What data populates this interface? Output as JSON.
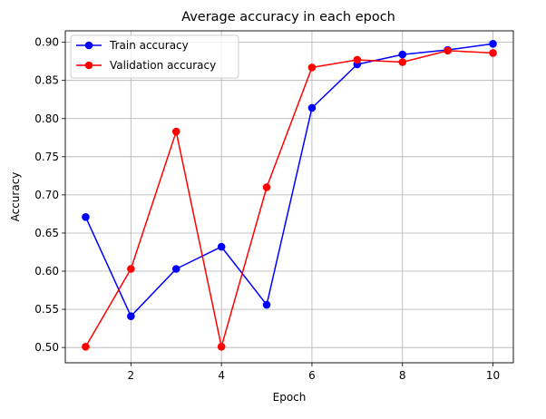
{
  "chart_data": {
    "type": "line",
    "title": "Average accuracy in each epoch",
    "xlabel": "Epoch",
    "ylabel": "Accuracy",
    "x": [
      1,
      2,
      3,
      4,
      5,
      6,
      7,
      8,
      9,
      10
    ],
    "xlim": [
      0.55,
      10.45
    ],
    "ylim": [
      0.48,
      0.915
    ],
    "xticks": [
      2,
      4,
      6,
      8,
      10
    ],
    "xtick_labels": [
      "2",
      "4",
      "6",
      "8",
      "10"
    ],
    "yticks": [
      0.5,
      0.55,
      0.6,
      0.65,
      0.7,
      0.75,
      0.8,
      0.85,
      0.9
    ],
    "ytick_labels": [
      "0.50",
      "0.55",
      "0.60",
      "0.65",
      "0.70",
      "0.75",
      "0.80",
      "0.85",
      "0.90"
    ],
    "grid": true,
    "legend_position": "top-left",
    "series": [
      {
        "name": "Train accuracy",
        "color": "#0000ff",
        "marker": "circle",
        "values": [
          0.671,
          0.541,
          0.603,
          0.632,
          0.556,
          0.814,
          0.871,
          0.884,
          0.89,
          0.898
        ]
      },
      {
        "name": "Validation accuracy",
        "color": "#ff0000",
        "marker": "circle",
        "values": [
          0.501,
          0.603,
          0.783,
          0.501,
          0.71,
          0.867,
          0.877,
          0.874,
          0.889,
          0.886
        ]
      }
    ]
  }
}
